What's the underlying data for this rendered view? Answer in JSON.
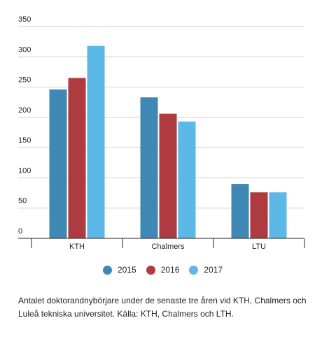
{
  "chart_data": {
    "type": "bar",
    "categories": [
      "KTH",
      "Chalmers",
      "LTU"
    ],
    "series": [
      {
        "name": "2015",
        "color": "#3f88b5",
        "values": [
          246,
          233,
          90
        ]
      },
      {
        "name": "2016",
        "color": "#ad3b40",
        "values": [
          265,
          206,
          76
        ]
      },
      {
        "name": "2017",
        "color": "#5cb8e6",
        "values": [
          318,
          193,
          76
        ]
      }
    ],
    "y_ticks": [
      "0",
      "50",
      "100",
      "150",
      "200",
      "250",
      "300",
      "350"
    ],
    "ylim": [
      0,
      350
    ],
    "grid": true,
    "legend": "bottom",
    "xlabel": "",
    "ylabel": ""
  },
  "caption": "Antalet doktorandnybörjare under de senaste tre åren vid KTH, Chalmers och Luleå tekniska universitet. Källa: KTH, Chalmers och LTH."
}
